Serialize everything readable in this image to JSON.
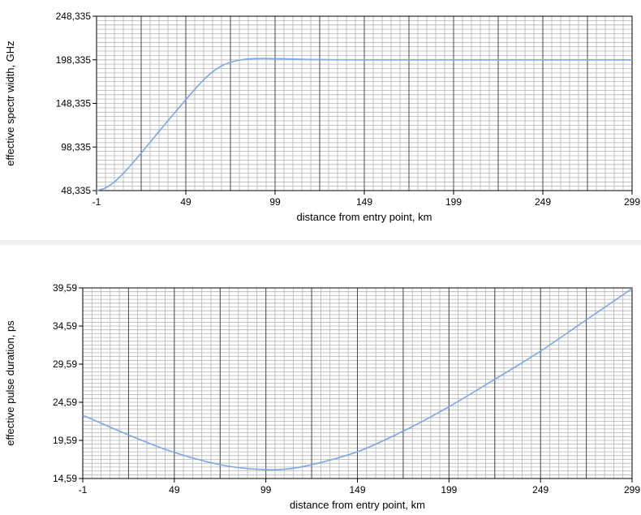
{
  "colors": {
    "series": "#7aa7e8",
    "minor_grid": "#b4b4b4",
    "major_grid": "#4a4a4a",
    "frame": "#000000",
    "separator": "#f0f0f0"
  },
  "chart_data": [
    {
      "type": "line",
      "xlabel": "distance from entry point, km",
      "ylabel": "effective spectr width, GHz",
      "xlim": [
        -1,
        299
      ],
      "ylim": [
        48.335,
        248.335
      ],
      "x_ticks": [
        -1,
        49,
        99,
        149,
        199,
        249,
        299
      ],
      "x_tick_labels": [
        "-1",
        "49",
        "99",
        "149",
        "199",
        "249",
        "299"
      ],
      "y_ticks": [
        48.335,
        98.335,
        148.335,
        198.335,
        248.335
      ],
      "y_tick_labels": [
        "48,335",
        "98,335",
        "148,335",
        "198,335",
        "248,335"
      ],
      "grid": true,
      "series": [
        {
          "x": [
            -1,
            4,
            9,
            14,
            19,
            24,
            29,
            34,
            39,
            44,
            49,
            54,
            59,
            64,
            69,
            74,
            79,
            84,
            89,
            94,
            99,
            109,
            119,
            129,
            149,
            199,
            249,
            299
          ],
          "y": [
            48.3,
            51.4,
            58.4,
            68.1,
            79.4,
            91.3,
            103.8,
            116.1,
            128.4,
            140.5,
            152.5,
            164.4,
            175.4,
            184.5,
            191.3,
            195.4,
            198.0,
            199.3,
            199.8,
            199.9,
            199.7,
            199.2,
            198.7,
            198.5,
            198.3,
            198.3,
            198.3,
            198.3
          ]
        }
      ]
    },
    {
      "type": "line",
      "xlabel": "distance from entry point, km",
      "ylabel": "effective pulse duration, ps",
      "xlim": [
        -1,
        299
      ],
      "ylim": [
        14.59,
        39.59
      ],
      "x_ticks": [
        -1,
        49,
        99,
        149,
        199,
        249,
        299
      ],
      "x_tick_labels": [
        "-1",
        "49",
        "99",
        "149",
        "199",
        "249",
        "299"
      ],
      "y_ticks": [
        14.59,
        19.59,
        24.59,
        29.59,
        34.59,
        39.59
      ],
      "y_tick_labels": [
        "14,59",
        "19,59",
        "24,59",
        "29,59",
        "34,59",
        "39,59"
      ],
      "grid": true,
      "series": [
        {
          "x": [
            -1,
            24,
            49,
            74,
            94,
            109,
            124,
            149,
            174,
            199,
            224,
            249,
            274,
            299
          ],
          "y": [
            22.9,
            20.3,
            18.0,
            16.4,
            15.8,
            15.8,
            16.4,
            18.1,
            20.8,
            24.0,
            27.6,
            31.3,
            35.4,
            39.5
          ]
        }
      ]
    }
  ]
}
